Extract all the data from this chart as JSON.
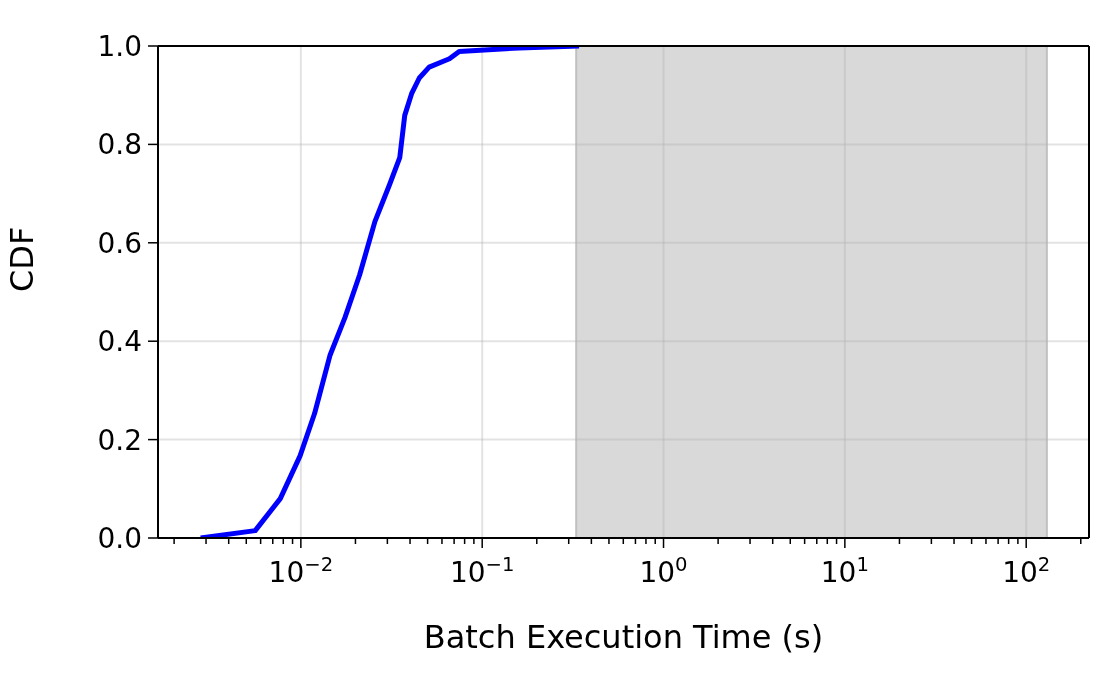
{
  "chart_data": {
    "type": "line",
    "xlabel": "Batch Execution Time (s)",
    "ylabel": "CDF",
    "x": [
      0.0028,
      0.0056,
      0.0077,
      0.0099,
      0.0119,
      0.0145,
      0.0175,
      0.0211,
      0.0256,
      0.0309,
      0.0351,
      0.0374,
      0.0408,
      0.045,
      0.051,
      0.066,
      0.0747,
      0.16,
      0.342
    ],
    "series": [
      {
        "color": "#0000ff",
        "values": [
          0,
          0.015,
          0.08,
          0.167,
          0.253,
          0.372,
          0.448,
          0.535,
          0.643,
          0.719,
          0.773,
          0.859,
          0.903,
          0.935,
          0.957,
          0.974,
          0.989,
          0.996,
          1.0
        ]
      }
    ],
    "log": "x",
    "xlim": [
      0.00163,
      222
    ],
    "ylim": [
      0,
      1
    ],
    "xticks": [
      {
        "value": 0.002,
        "label": null
      },
      {
        "value": 0.003,
        "label": null
      },
      {
        "value": 0.004,
        "label": null
      },
      {
        "value": 0.005,
        "label": null
      },
      {
        "value": 0.006,
        "label": null
      },
      {
        "value": 0.007,
        "label": null
      },
      {
        "value": 0.008,
        "label": null
      },
      {
        "value": 0.009,
        "label": null
      },
      {
        "value": 0.01,
        "label": "10$^{−2}$"
      },
      {
        "value": 0.02,
        "label": null
      },
      {
        "value": 0.03,
        "label": null
      },
      {
        "value": 0.04,
        "label": null
      },
      {
        "value": 0.05,
        "label": null
      },
      {
        "value": 0.06,
        "label": null
      },
      {
        "value": 0.07,
        "label": null
      },
      {
        "value": 0.08,
        "label": null
      },
      {
        "value": 0.09,
        "label": null
      },
      {
        "value": 0.1,
        "label": "10$^{−1}$"
      },
      {
        "value": 0.2,
        "label": null
      },
      {
        "value": 0.3,
        "label": null
      },
      {
        "value": 0.4,
        "label": null
      },
      {
        "value": 0.5,
        "label": null
      },
      {
        "value": 0.6,
        "label": null
      },
      {
        "value": 0.7,
        "label": null
      },
      {
        "value": 0.8,
        "label": null
      },
      {
        "value": 0.9,
        "label": null
      },
      {
        "value": 1,
        "label": "10$^{0}$"
      },
      {
        "value": 2,
        "label": null
      },
      {
        "value": 3,
        "label": null
      },
      {
        "value": 4,
        "label": null
      },
      {
        "value": 5,
        "label": null
      },
      {
        "value": 6,
        "label": null
      },
      {
        "value": 7,
        "label": null
      },
      {
        "value": 8,
        "label": null
      },
      {
        "value": 9,
        "label": null
      },
      {
        "value": 10,
        "label": "10$^{1}$"
      },
      {
        "value": 20,
        "label": null
      },
      {
        "value": 30,
        "label": null
      },
      {
        "value": 40,
        "label": null
      },
      {
        "value": 50,
        "label": null
      },
      {
        "value": 60,
        "label": null
      },
      {
        "value": 70,
        "label": null
      },
      {
        "value": 80,
        "label": null
      },
      {
        "value": 90,
        "label": null
      },
      {
        "value": 100,
        "label": "10$^{2}$"
      },
      {
        "value": 200,
        "label": null
      }
    ],
    "yticks": [
      {
        "value": 0,
        "label": "0.0"
      },
      {
        "value": 0.2,
        "label": "0.2"
      },
      {
        "value": 0.4,
        "label": "0.4"
      },
      {
        "value": 0.6,
        "label": "0.6"
      },
      {
        "value": 0.8,
        "label": "0.8"
      },
      {
        "value": 1,
        "label": "1.0"
      }
    ],
    "bands": [
      {
        "axis": "x",
        "from": 0.33,
        "to": 130,
        "color": "#d9d9d9"
      }
    ],
    "grid": true,
    "marker": "none",
    "line_style": "solid"
  }
}
